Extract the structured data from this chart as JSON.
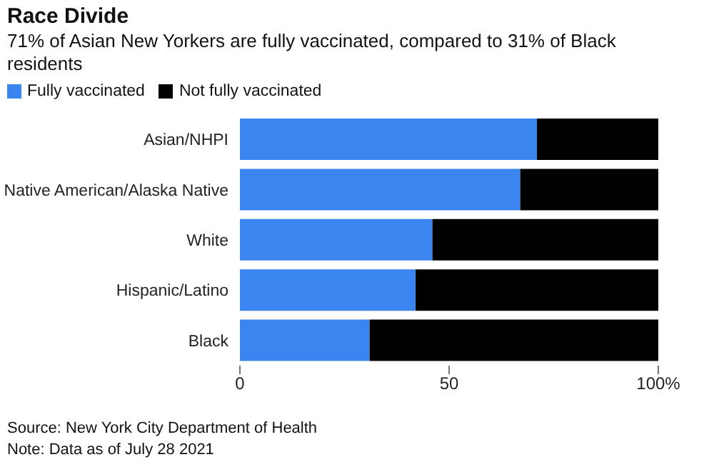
{
  "chart_data": {
    "type": "bar",
    "orientation": "horizontal",
    "stacked": true,
    "title": "Race Divide",
    "subtitle": "71% of Asian New Yorkers are fully vaccinated, compared to 31% of Black residents",
    "categories": [
      "Asian/NHPI",
      "Native American/Alaska Native",
      "White",
      "Hispanic/Latino",
      "Black"
    ],
    "series": [
      {
        "name": "Fully vaccinated",
        "color": "#3a85f0",
        "values": [
          71,
          67,
          46,
          42,
          31
        ]
      },
      {
        "name": "Not fully vaccinated",
        "color": "#000000",
        "values": [
          29,
          33,
          54,
          58,
          69
        ]
      }
    ],
    "xlim": [
      0,
      100
    ],
    "xticks": [
      0,
      50,
      {
        "value": 100,
        "label": "100%"
      }
    ],
    "legend": "top left",
    "annotations": [
      "Source: New York City Department of Health",
      "Note: Data as of July 28 2021"
    ]
  }
}
